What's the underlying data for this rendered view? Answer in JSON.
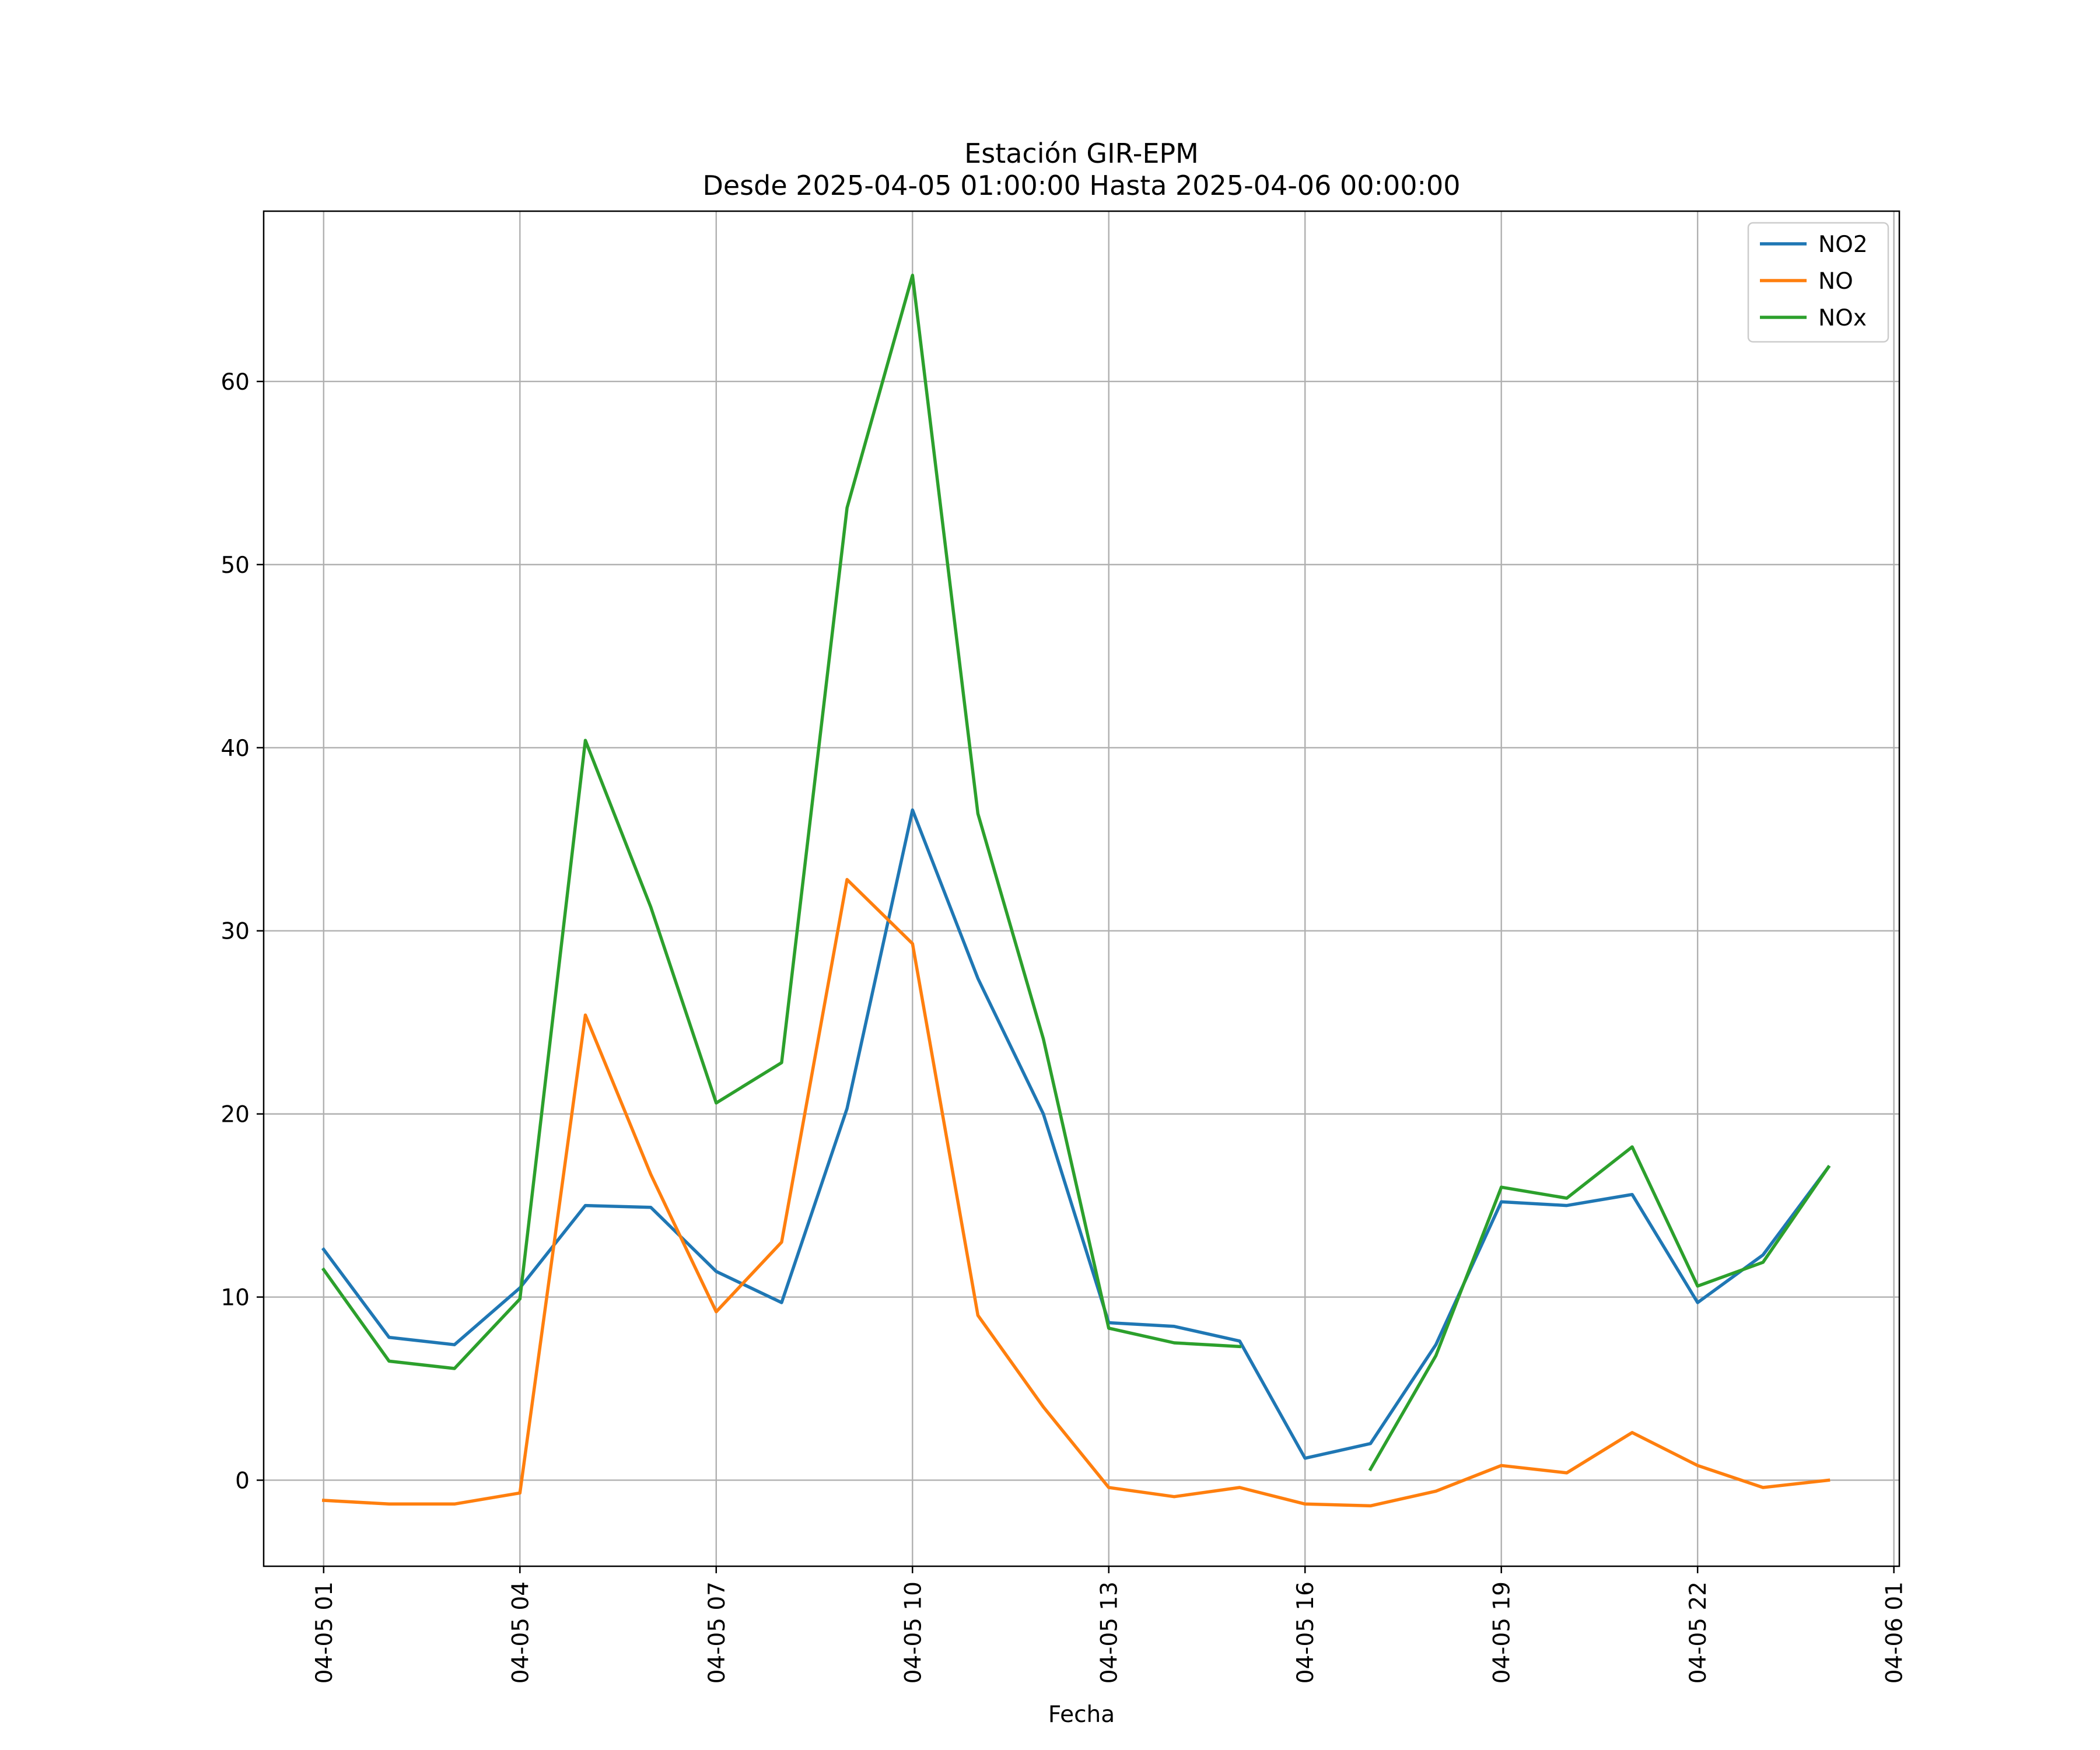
{
  "chart_data": {
    "type": "line",
    "title": "Estación GIR-EPM",
    "subtitle": "Desde 2025-04-05 01:00:00 Hasta 2025-04-06 00:00:00",
    "xlabel": "Fecha",
    "ylabel": "",
    "x": [
      "2025-04-05 01:00",
      "2025-04-05 02:00",
      "2025-04-05 03:00",
      "2025-04-05 04:00",
      "2025-04-05 05:00",
      "2025-04-05 06:00",
      "2025-04-05 07:00",
      "2025-04-05 08:00",
      "2025-04-05 09:00",
      "2025-04-05 10:00",
      "2025-04-05 11:00",
      "2025-04-05 12:00",
      "2025-04-05 13:00",
      "2025-04-05 14:00",
      "2025-04-05 15:00",
      "2025-04-05 16:00",
      "2025-04-05 17:00",
      "2025-04-05 18:00",
      "2025-04-05 19:00",
      "2025-04-05 20:00",
      "2025-04-05 21:00",
      "2025-04-05 22:00",
      "2025-04-05 23:00",
      "2025-04-06 00:00"
    ],
    "xlim": [
      "2025-04-05 00:05",
      "2025-04-06 01:05"
    ],
    "x_ticks": [
      {
        "value": "2025-04-05 01:00",
        "label": "04-05 01"
      },
      {
        "value": "2025-04-05 04:00",
        "label": "04-05 04"
      },
      {
        "value": "2025-04-05 07:00",
        "label": "04-05 07"
      },
      {
        "value": "2025-04-05 10:00",
        "label": "04-05 10"
      },
      {
        "value": "2025-04-05 13:00",
        "label": "04-05 13"
      },
      {
        "value": "2025-04-05 16:00",
        "label": "04-05 16"
      },
      {
        "value": "2025-04-05 19:00",
        "label": "04-05 19"
      },
      {
        "value": "2025-04-05 22:00",
        "label": "04-05 22"
      },
      {
        "value": "2025-04-06 01:00",
        "label": "04-06 01"
      }
    ],
    "ylim": [
      -4.7,
      69.3
    ],
    "y_ticks": [
      {
        "value": 0,
        "label": "0"
      },
      {
        "value": 10,
        "label": "10"
      },
      {
        "value": 20,
        "label": "20"
      },
      {
        "value": 30,
        "label": "30"
      },
      {
        "value": 40,
        "label": "40"
      },
      {
        "value": 50,
        "label": "50"
      },
      {
        "value": 60,
        "label": "60"
      }
    ],
    "grid": true,
    "legend_position": "top-right",
    "series": [
      {
        "name": "NO2",
        "color": "#1f77b4",
        "values": [
          12.6,
          7.8,
          7.4,
          10.5,
          15.0,
          14.9,
          11.4,
          9.7,
          20.3,
          36.6,
          27.4,
          20.0,
          8.6,
          8.4,
          7.6,
          1.2,
          2.0,
          7.4,
          15.2,
          15.0,
          15.6,
          9.7,
          12.3,
          17.1
        ]
      },
      {
        "name": "NO",
        "color": "#ff7f0e",
        "values": [
          -1.1,
          -1.3,
          -1.3,
          -0.7,
          25.4,
          16.7,
          9.2,
          13.0,
          32.8,
          29.3,
          9.0,
          4.0,
          -0.4,
          -0.9,
          -0.4,
          -1.3,
          -1.4,
          -0.6,
          0.8,
          0.4,
          2.6,
          0.8,
          -0.4,
          0.0
        ]
      },
      {
        "name": "NOx",
        "color": "#2ca02c",
        "values": [
          11.5,
          6.5,
          6.1,
          9.9,
          40.4,
          31.3,
          20.6,
          22.8,
          53.1,
          65.8,
          36.4,
          24.1,
          8.3,
          7.5,
          7.3,
          null,
          0.6,
          6.8,
          16.0,
          15.4,
          18.2,
          10.6,
          11.9,
          17.1
        ]
      }
    ]
  }
}
